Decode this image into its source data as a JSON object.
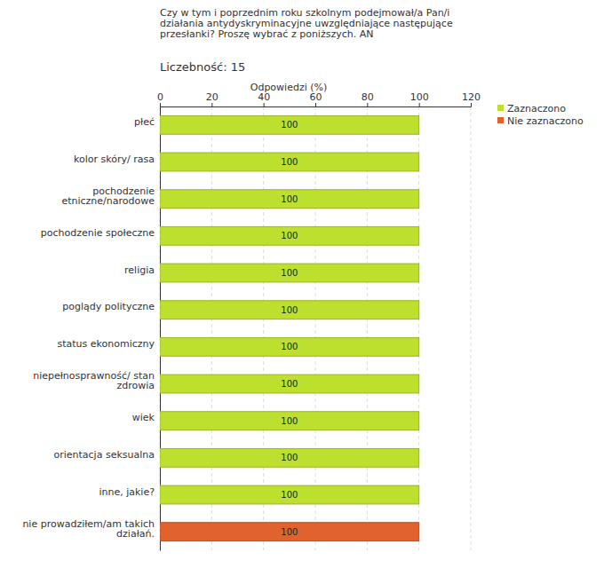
{
  "chart_data": {
    "type": "bar",
    "orientation": "horizontal",
    "title": "Czy w tym i poprzednim roku szkolnym podejmował/a Pan/i działania antydyskryminacyjne uwzględniające następujące przesłanki? Proszę wybrać z poniższych. AN",
    "subtitle": "Liczebność: 15",
    "x_label": "Odpowiedzi (%)",
    "categories": [
      "płeć",
      "kolor skóry/ rasa",
      "pochodzenie etniczne/narodowe",
      "pochodzenie społeczne",
      "religia",
      "poglądy polityczne",
      "status ekonomiczny",
      "niepełnosprawność/ stan zdrowia",
      "wiek",
      "orientacja seksualna",
      "inne, jakie?",
      "nie prowadziłem/am takich działań."
    ],
    "series": [
      {
        "name": "Zaznaczono",
        "color": "#bde02e",
        "values": [
          100,
          100,
          100,
          100,
          100,
          100,
          100,
          100,
          100,
          100,
          100,
          null
        ]
      },
      {
        "name": "Nie zaznaczono",
        "color": "#e0622f",
        "values": [
          null,
          null,
          null,
          null,
          null,
          null,
          null,
          null,
          null,
          null,
          null,
          100
        ]
      }
    ],
    "xlim": [
      0,
      120
    ],
    "xticks": [
      0,
      20,
      40,
      60,
      80,
      100,
      120
    ],
    "grid": true,
    "data_labels": true,
    "legend": "top-right"
  }
}
